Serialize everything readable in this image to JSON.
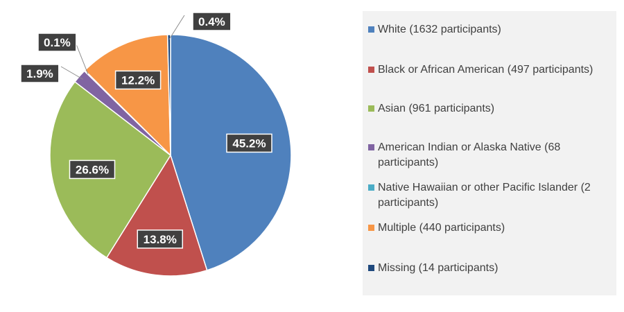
{
  "chart_data": {
    "type": "pie",
    "title": "",
    "start_angle_deg": 0,
    "direction": "clockwise",
    "legend_position": "right",
    "slices": [
      {
        "name": "White (1632 participants)",
        "value": 45.2,
        "label": "45.2%",
        "color": "#4f81bd"
      },
      {
        "name": "Black or African American  (497 participants)",
        "value": 13.8,
        "label": "13.8%",
        "color": "#c0504d"
      },
      {
        "name": "Asian (961 participants)",
        "value": 26.6,
        "label": "26.6%",
        "color": "#9bbb59"
      },
      {
        "name": "American Indian or Alaska Native (68 participants)",
        "value": 1.9,
        "label": "1.9%",
        "color": "#8064a2"
      },
      {
        "name": "Native Hawaiian or other Pacific Islander (2 participants)",
        "value": 0.1,
        "label": "0.1%",
        "color": "#4bacc6"
      },
      {
        "name": "Multiple (440 participants)",
        "value": 12.2,
        "label": "12.2%",
        "color": "#f79646"
      },
      {
        "name": "Missing (14 participants)",
        "value": 0.4,
        "label": "0.4%",
        "color": "#1f497d"
      }
    ]
  }
}
